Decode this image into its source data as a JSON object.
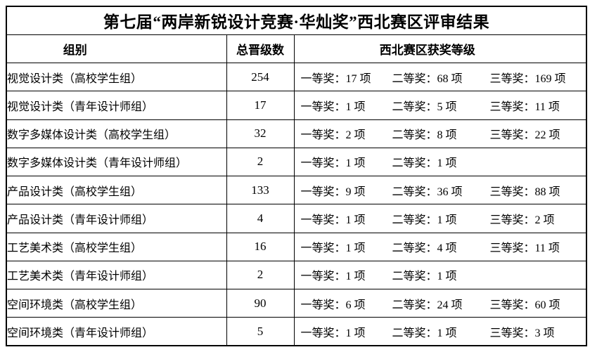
{
  "colors": {
    "background": "#ffffff",
    "border": "#000000",
    "text": "#000000"
  },
  "title": "第七届“两岸新锐设计竞赛·华灿奖”西北赛区评审结果",
  "columns": {
    "group": "组别",
    "total": "总晋级数",
    "awards": "西北赛区获奖等级"
  },
  "rows": [
    {
      "group": "视觉设计类（高校学生组）",
      "total": "254",
      "first": "一等奖：17 项",
      "second": "二等奖：68 项",
      "third": "三等奖：169 项"
    },
    {
      "group": "视觉设计类（青年设计师组）",
      "total": "17",
      "first": "一等奖：1 项",
      "second": "二等奖：5 项",
      "third": "三等奖：11 项"
    },
    {
      "group": "数字多媒体设计类（高校学生组）",
      "total": "32",
      "first": "一等奖：2 项",
      "second": "二等奖：8 项",
      "third": "三等奖：22 项"
    },
    {
      "group": "数字多媒体设计类（青年设计师组）",
      "total": "2",
      "first": "一等奖：1 项",
      "second": "二等奖：1 项",
      "third": ""
    },
    {
      "group": "产品设计类（高校学生组）",
      "total": "133",
      "first": "一等奖：9 项",
      "second": "二等奖：36 项",
      "third": "三等奖：88 项"
    },
    {
      "group": "产品设计类（青年设计师组）",
      "total": "4",
      "first": "一等奖：1 项",
      "second": "二等奖：1 项",
      "third": "三等奖：2 项"
    },
    {
      "group": "工艺美术类（高校学生组）",
      "total": "16",
      "first": "一等奖：1 项",
      "second": "二等奖：4 项",
      "third": "三等奖：11 项"
    },
    {
      "group": "工艺美术类（青年设计师组）",
      "total": "2",
      "first": "一等奖：1 项",
      "second": "二等奖：1 项",
      "third": ""
    },
    {
      "group": "空间环境类（高校学生组）",
      "total": "90",
      "first": "一等奖：6 项",
      "second": "二等奖：24 项",
      "third": "三等奖：60 项"
    },
    {
      "group": "空间环境类（青年设计师组）",
      "total": "5",
      "first": "一等奖：1 项",
      "second": "二等奖：1 项",
      "third": "三等奖：3 项"
    }
  ]
}
